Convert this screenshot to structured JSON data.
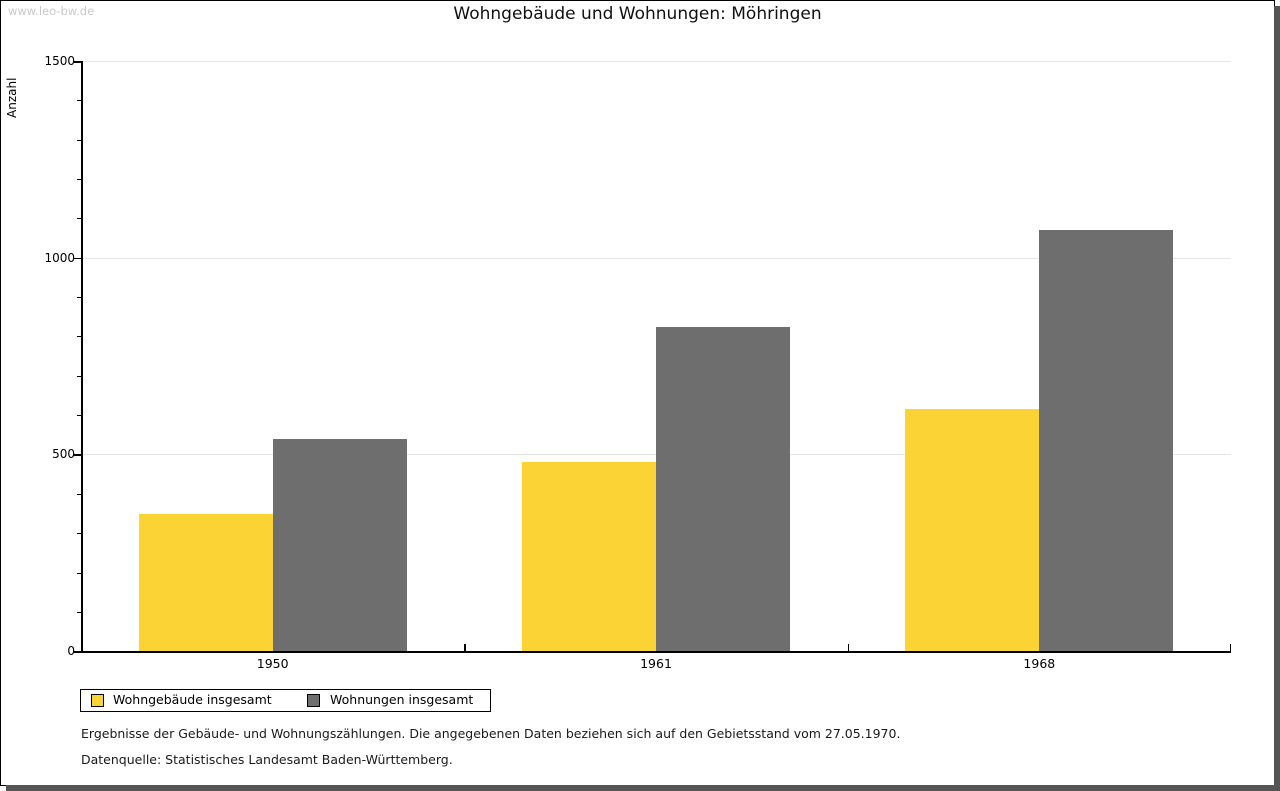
{
  "watermark": "www.leo-bw.de",
  "title": "Wohngebäude und Wohnungen: Möhringen",
  "chart_data": {
    "type": "bar",
    "title": "Wohngebäude und Wohnungen: Möhringen",
    "ylabel": "Anzahl",
    "xlabel": "",
    "categories": [
      "1950",
      "1961",
      "1968"
    ],
    "series": [
      {
        "name": "Wohngebäude insgesamt",
        "color": "#FCD335",
        "values": [
          350,
          480,
          615
        ]
      },
      {
        "name": "Wohnungen insgesamt",
        "color": "#6E6E6E",
        "values": [
          540,
          825,
          1070
        ]
      }
    ],
    "ylim": [
      0,
      1500
    ],
    "y_major_ticks": [
      0,
      500,
      1000,
      1500
    ],
    "y_minor_step": 100,
    "grid": "horizontal-major-only",
    "legend_position": "bottom-left"
  },
  "footnotes": {
    "line1": "Ergebnisse der Gebäude- und Wohnungszählungen. Die angegebenen Daten beziehen sich auf den Gebietsstand vom 27.05.1970.",
    "line2": "Datenquelle: Statistisches Landesamt Baden-Württemberg."
  },
  "colors": {
    "bar_yellow": "#FCD335",
    "bar_gray": "#6E6E6E",
    "gridline": "#e4e4e4",
    "axis": "#000000",
    "watermark": "#c9c9c9",
    "frame_shadow": "#555555"
  }
}
